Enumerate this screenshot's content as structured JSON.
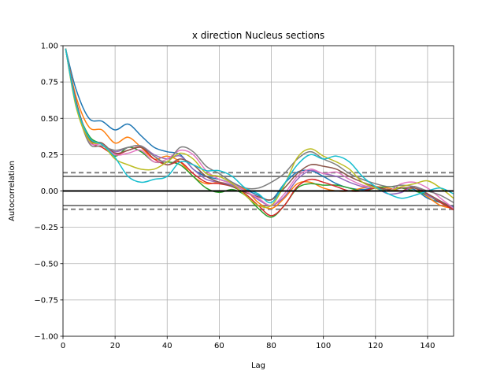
{
  "chart_data": {
    "type": "line",
    "title": "x direction Nucleus sections",
    "xlabel": "Lag",
    "ylabel": "Autocorrelation",
    "xlim": [
      0,
      150
    ],
    "ylim": [
      -1.0,
      1.0
    ],
    "grid": true,
    "x_ticks": [
      "0",
      "20",
      "40",
      "60",
      "80",
      "100",
      "120",
      "140"
    ],
    "y_ticks": [
      "−1.00",
      "−0.75",
      "−0.50",
      "−0.25",
      "0.00",
      "0.25",
      "0.50",
      "0.75",
      "1.00"
    ],
    "reference_lines": {
      "zero": 0.0,
      "solid_band": [
        0.1,
        -0.1
      ],
      "dashed_band": [
        0.126,
        -0.126
      ]
    },
    "series": [
      {
        "color": "#1f77b4",
        "points": [
          [
            1,
            0.98
          ],
          [
            5,
            0.7
          ],
          [
            10,
            0.5
          ],
          [
            15,
            0.48
          ],
          [
            20,
            0.42
          ],
          [
            25,
            0.46
          ],
          [
            30,
            0.38
          ],
          [
            35,
            0.3
          ],
          [
            40,
            0.27
          ],
          [
            45,
            0.25
          ],
          [
            50,
            0.15
          ],
          [
            55,
            0.1
          ],
          [
            60,
            0.08
          ],
          [
            65,
            0.05
          ],
          [
            70,
            0.01
          ],
          [
            75,
            -0.03
          ],
          [
            80,
            -0.06
          ],
          [
            85,
            0.05
          ],
          [
            90,
            0.13
          ],
          [
            95,
            0.14
          ],
          [
            100,
            0.1
          ],
          [
            105,
            0.05
          ],
          [
            110,
            0.02
          ],
          [
            115,
            0.01
          ],
          [
            120,
            0.02
          ],
          [
            125,
            0.0
          ],
          [
            130,
            0.02
          ],
          [
            135,
            0.01
          ],
          [
            140,
            -0.05
          ],
          [
            145,
            -0.08
          ],
          [
            150,
            -0.11
          ]
        ]
      },
      {
        "color": "#ff7f0e",
        "points": [
          [
            1,
            0.98
          ],
          [
            5,
            0.65
          ],
          [
            10,
            0.44
          ],
          [
            15,
            0.42
          ],
          [
            20,
            0.33
          ],
          [
            25,
            0.37
          ],
          [
            30,
            0.3
          ],
          [
            35,
            0.22
          ],
          [
            40,
            0.24
          ],
          [
            45,
            0.2
          ],
          [
            50,
            0.1
          ],
          [
            55,
            0.05
          ],
          [
            60,
            0.06
          ],
          [
            65,
            0.04
          ],
          [
            70,
            0.01
          ],
          [
            75,
            -0.08
          ],
          [
            80,
            -0.12
          ],
          [
            85,
            -0.05
          ],
          [
            90,
            0.05
          ],
          [
            95,
            0.06
          ],
          [
            100,
            0.02
          ],
          [
            105,
            0.0
          ],
          [
            110,
            0.0
          ],
          [
            115,
            0.02
          ],
          [
            120,
            0.03
          ],
          [
            125,
            0.02
          ],
          [
            130,
            0.0
          ],
          [
            135,
            0.02
          ],
          [
            140,
            -0.04
          ],
          [
            145,
            -0.1
          ],
          [
            150,
            -0.12
          ]
        ]
      },
      {
        "color": "#2ca02c",
        "points": [
          [
            1,
            0.98
          ],
          [
            5,
            0.6
          ],
          [
            10,
            0.38
          ],
          [
            15,
            0.32
          ],
          [
            20,
            0.24
          ],
          [
            25,
            0.3
          ],
          [
            30,
            0.27
          ],
          [
            35,
            0.2
          ],
          [
            40,
            0.2
          ],
          [
            45,
            0.18
          ],
          [
            50,
            0.1
          ],
          [
            55,
            0.02
          ],
          [
            60,
            -0.01
          ],
          [
            65,
            0.01
          ],
          [
            70,
            -0.03
          ],
          [
            75,
            -0.12
          ],
          [
            80,
            -0.18
          ],
          [
            85,
            -0.1
          ],
          [
            90,
            0.02
          ],
          [
            95,
            0.05
          ],
          [
            100,
            0.04
          ],
          [
            105,
            0.04
          ],
          [
            110,
            0.02
          ],
          [
            115,
            0.0
          ],
          [
            120,
            0.02
          ],
          [
            125,
            0.03
          ],
          [
            130,
            0.02
          ],
          [
            135,
            0.0
          ],
          [
            140,
            -0.03
          ],
          [
            145,
            -0.08
          ],
          [
            150,
            -0.12
          ]
        ]
      },
      {
        "color": "#d62728",
        "points": [
          [
            1,
            0.98
          ],
          [
            5,
            0.6
          ],
          [
            10,
            0.35
          ],
          [
            15,
            0.3
          ],
          [
            20,
            0.25
          ],
          [
            25,
            0.28
          ],
          [
            30,
            0.3
          ],
          [
            35,
            0.22
          ],
          [
            40,
            0.18
          ],
          [
            45,
            0.2
          ],
          [
            50,
            0.12
          ],
          [
            55,
            0.06
          ],
          [
            60,
            0.05
          ],
          [
            65,
            0.03
          ],
          [
            70,
            -0.02
          ],
          [
            75,
            -0.1
          ],
          [
            80,
            -0.17
          ],
          [
            85,
            -0.1
          ],
          [
            90,
            0.03
          ],
          [
            95,
            0.08
          ],
          [
            100,
            0.06
          ],
          [
            105,
            0.03
          ],
          [
            110,
            0.0
          ],
          [
            115,
            0.0
          ],
          [
            120,
            0.02
          ],
          [
            125,
            0.01
          ],
          [
            130,
            0.0
          ],
          [
            135,
            0.03
          ],
          [
            140,
            -0.02
          ],
          [
            145,
            -0.08
          ],
          [
            150,
            -0.13
          ]
        ]
      },
      {
        "color": "#9467bd",
        "points": [
          [
            1,
            0.98
          ],
          [
            5,
            0.62
          ],
          [
            10,
            0.36
          ],
          [
            15,
            0.32
          ],
          [
            20,
            0.27
          ],
          [
            25,
            0.3
          ],
          [
            30,
            0.31
          ],
          [
            35,
            0.25
          ],
          [
            40,
            0.22
          ],
          [
            45,
            0.24
          ],
          [
            50,
            0.15
          ],
          [
            55,
            0.08
          ],
          [
            60,
            0.06
          ],
          [
            65,
            0.04
          ],
          [
            70,
            0.0
          ],
          [
            75,
            -0.06
          ],
          [
            80,
            -0.1
          ],
          [
            85,
            -0.04
          ],
          [
            90,
            0.08
          ],
          [
            95,
            0.14
          ],
          [
            100,
            0.12
          ],
          [
            105,
            0.1
          ],
          [
            110,
            0.06
          ],
          [
            115,
            0.03
          ],
          [
            120,
            0.02
          ],
          [
            125,
            -0.02
          ],
          [
            130,
            -0.01
          ],
          [
            135,
            0.03
          ],
          [
            140,
            -0.03
          ],
          [
            145,
            -0.07
          ],
          [
            150,
            -0.12
          ]
        ]
      },
      {
        "color": "#8c564b",
        "points": [
          [
            1,
            0.98
          ],
          [
            5,
            0.62
          ],
          [
            10,
            0.36
          ],
          [
            15,
            0.33
          ],
          [
            20,
            0.26
          ],
          [
            25,
            0.28
          ],
          [
            30,
            0.3
          ],
          [
            35,
            0.24
          ],
          [
            40,
            0.18
          ],
          [
            45,
            0.22
          ],
          [
            50,
            0.18
          ],
          [
            55,
            0.1
          ],
          [
            60,
            0.06
          ],
          [
            65,
            0.03
          ],
          [
            70,
            -0.01
          ],
          [
            75,
            -0.04
          ],
          [
            80,
            -0.06
          ],
          [
            85,
            0.02
          ],
          [
            90,
            0.12
          ],
          [
            95,
            0.18
          ],
          [
            100,
            0.17
          ],
          [
            105,
            0.15
          ],
          [
            110,
            0.1
          ],
          [
            115,
            0.06
          ],
          [
            120,
            0.03
          ],
          [
            125,
            0.01
          ],
          [
            130,
            0.02
          ],
          [
            135,
            0.02
          ],
          [
            140,
            -0.02
          ],
          [
            145,
            -0.07
          ],
          [
            150,
            -0.12
          ]
        ]
      },
      {
        "color": "#e377c2",
        "points": [
          [
            1,
            0.98
          ],
          [
            5,
            0.6
          ],
          [
            10,
            0.34
          ],
          [
            15,
            0.32
          ],
          [
            20,
            0.25
          ],
          [
            25,
            0.26
          ],
          [
            30,
            0.28
          ],
          [
            35,
            0.2
          ],
          [
            40,
            0.22
          ],
          [
            45,
            0.28
          ],
          [
            50,
            0.25
          ],
          [
            55,
            0.14
          ],
          [
            60,
            0.08
          ],
          [
            65,
            0.05
          ],
          [
            70,
            0.0
          ],
          [
            75,
            -0.05
          ],
          [
            80,
            -0.1
          ],
          [
            85,
            -0.02
          ],
          [
            90,
            0.1
          ],
          [
            95,
            0.15
          ],
          [
            100,
            0.12
          ],
          [
            105,
            0.13
          ],
          [
            110,
            0.08
          ],
          [
            115,
            0.04
          ],
          [
            120,
            0.02
          ],
          [
            125,
            0.0
          ],
          [
            130,
            0.05
          ],
          [
            135,
            0.06
          ],
          [
            140,
            0.02
          ],
          [
            145,
            -0.05
          ],
          [
            150,
            -0.12
          ]
        ]
      },
      {
        "color": "#7f7f7f",
        "points": [
          [
            1,
            0.98
          ],
          [
            5,
            0.6
          ],
          [
            10,
            0.33
          ],
          [
            15,
            0.31
          ],
          [
            20,
            0.28
          ],
          [
            25,
            0.3
          ],
          [
            30,
            0.31
          ],
          [
            35,
            0.24
          ],
          [
            40,
            0.2
          ],
          [
            45,
            0.3
          ],
          [
            50,
            0.27
          ],
          [
            55,
            0.17
          ],
          [
            60,
            0.12
          ],
          [
            65,
            0.06
          ],
          [
            70,
            0.02
          ],
          [
            75,
            0.02
          ],
          [
            80,
            0.06
          ],
          [
            85,
            0.12
          ],
          [
            90,
            0.22
          ],
          [
            95,
            0.27
          ],
          [
            100,
            0.22
          ],
          [
            105,
            0.18
          ],
          [
            110,
            0.12
          ],
          [
            115,
            0.08
          ],
          [
            120,
            0.05
          ],
          [
            125,
            0.03
          ],
          [
            130,
            0.04
          ],
          [
            135,
            0.03
          ],
          [
            140,
            0.0
          ],
          [
            145,
            -0.03
          ],
          [
            150,
            -0.08
          ]
        ]
      },
      {
        "color": "#bcbd22",
        "points": [
          [
            1,
            0.98
          ],
          [
            5,
            0.58
          ],
          [
            10,
            0.35
          ],
          [
            15,
            0.32
          ],
          [
            20,
            0.22
          ],
          [
            25,
            0.18
          ],
          [
            30,
            0.15
          ],
          [
            35,
            0.15
          ],
          [
            40,
            0.2
          ],
          [
            45,
            0.26
          ],
          [
            50,
            0.22
          ],
          [
            55,
            0.12
          ],
          [
            60,
            0.1
          ],
          [
            65,
            0.05
          ],
          [
            70,
            -0.03
          ],
          [
            75,
            -0.1
          ],
          [
            80,
            -0.1
          ],
          [
            85,
            0.04
          ],
          [
            90,
            0.23
          ],
          [
            95,
            0.29
          ],
          [
            100,
            0.24
          ],
          [
            105,
            0.2
          ],
          [
            110,
            0.15
          ],
          [
            115,
            0.06
          ],
          [
            120,
            0.02
          ],
          [
            125,
            0.0
          ],
          [
            130,
            0.03
          ],
          [
            135,
            0.05
          ],
          [
            140,
            0.07
          ],
          [
            145,
            0.02
          ],
          [
            150,
            -0.05
          ]
        ]
      },
      {
        "color": "#17becf",
        "points": [
          [
            1,
            0.98
          ],
          [
            5,
            0.6
          ],
          [
            10,
            0.37
          ],
          [
            15,
            0.32
          ],
          [
            20,
            0.23
          ],
          [
            25,
            0.1
          ],
          [
            30,
            0.06
          ],
          [
            35,
            0.08
          ],
          [
            40,
            0.1
          ],
          [
            45,
            0.2
          ],
          [
            50,
            0.18
          ],
          [
            55,
            0.14
          ],
          [
            60,
            0.14
          ],
          [
            65,
            0.1
          ],
          [
            70,
            0.02
          ],
          [
            75,
            -0.02
          ],
          [
            80,
            -0.08
          ],
          [
            85,
            0.05
          ],
          [
            90,
            0.18
          ],
          [
            95,
            0.25
          ],
          [
            100,
            0.22
          ],
          [
            105,
            0.24
          ],
          [
            110,
            0.2
          ],
          [
            115,
            0.1
          ],
          [
            120,
            0.03
          ],
          [
            125,
            -0.02
          ],
          [
            130,
            -0.05
          ],
          [
            135,
            -0.03
          ],
          [
            140,
            0.0
          ],
          [
            145,
            0.02
          ],
          [
            150,
            -0.02
          ]
        ]
      }
    ]
  }
}
